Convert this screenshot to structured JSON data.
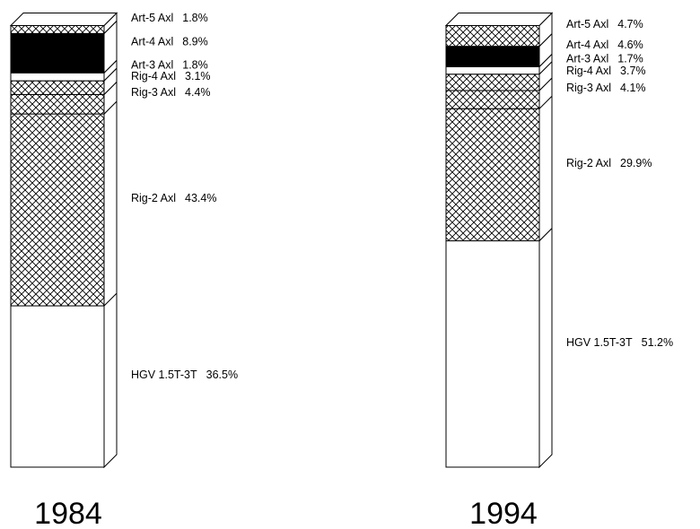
{
  "chart_data": {
    "type": "stacked_bar_100",
    "categories": [
      "1984",
      "1994"
    ],
    "series": [
      {
        "name": "HGV 1.5T-3T",
        "color": "#ffffff",
        "values": [
          36.5,
          51.2
        ],
        "value_labels": [
          "36.5%",
          "51.2%"
        ]
      },
      {
        "name": "Rig-2 Axl",
        "color": "#ffffff",
        "pattern": "crosshatch",
        "values": [
          43.4,
          29.9
        ],
        "value_labels": [
          "43.4%",
          "29.9%"
        ]
      },
      {
        "name": "Rig-3 Axl",
        "color": "#ffffff",
        "pattern": "crosshatch",
        "values": [
          4.4,
          4.1
        ],
        "value_labels": [
          "4.4%",
          "4.1%"
        ]
      },
      {
        "name": "Rig-4 Axl",
        "color": "#ffffff",
        "pattern": "crosshatch",
        "values": [
          3.1,
          3.7
        ],
        "value_labels": [
          "3.1%",
          "3.7%"
        ]
      },
      {
        "name": "Art-3 Axl",
        "color": "#ffffff",
        "values": [
          1.8,
          1.7
        ],
        "value_labels": [
          "1.8%",
          "1.7%"
        ]
      },
      {
        "name": "Art-4 Axl",
        "color": "#000000",
        "values": [
          8.9,
          4.6
        ],
        "value_labels": [
          "8.9%",
          "4.6%"
        ]
      },
      {
        "name": "Art-5 Axl",
        "color": "#ffffff",
        "pattern": "crosshatch",
        "values": [
          1.8,
          4.7
        ],
        "value_labels": [
          "1.8%",
          "4.7%"
        ]
      }
    ],
    "ylim": [
      0,
      100
    ]
  }
}
